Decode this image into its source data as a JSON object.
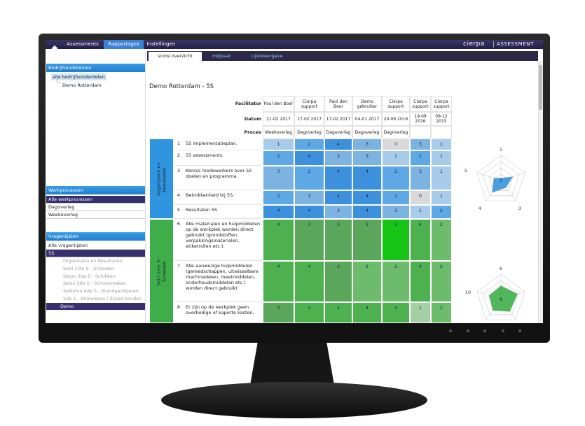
{
  "nav": {
    "items": [
      "Assessments",
      "Rapportages",
      "Instellingen"
    ],
    "active": 1,
    "logo": "cierpa",
    "product": "ASSESSMENT"
  },
  "tabs": {
    "items": [
      "score overzicht",
      "mijlpaal",
      "Lijstweergave"
    ],
    "active": 0
  },
  "sidebar": {
    "sections": [
      {
        "title": "Bedrijfsonderdelen",
        "items": [
          "alle bedrijfsonderdelen",
          "Demo Rotterdam"
        ]
      },
      {
        "title": "Werkprocessen",
        "items": [
          "Alle werkprocessen",
          "Dagoverleg",
          "Weekoverleg"
        ]
      },
      {
        "title": "Vragenlijsten",
        "items": [
          "Alle vragenlijsten",
          "5S"
        ],
        "subitems": [
          "Organisatie en Resultaten.",
          "Seiri 1ste S - Scheiden",
          "Seton 2de S - Schikken",
          "Seiso 3de S - Schoonmaken",
          "Seiketsu 4de S - Standaardiseren",
          "5de S - Stimuleren / Stand-houden",
          "Demo"
        ]
      }
    ]
  },
  "report": {
    "title": "Demo Rotterdam - 5S",
    "header_labels": [
      "Facilitator",
      "Datum",
      "Proces"
    ],
    "columns": [
      {
        "facilitator": "Paul den Boer",
        "date": "21-02 2017",
        "process": "Weekoverleg"
      },
      {
        "facilitator": "Cierpa support",
        "date": "17-02 2017",
        "process": "Dagoverleg"
      },
      {
        "facilitator": "Paul den Boer",
        "date": "17-02 2017",
        "process": "Dagoverleg"
      },
      {
        "facilitator": "Demo gebruiker",
        "date": "04-01 2017",
        "process": "Dagoverleg"
      },
      {
        "facilitator": "Cierpa support",
        "date": "20-09 2016",
        "process": "Dagoverleg"
      },
      {
        "facilitator": "Cierpa support",
        "date": "19-09 2016"
      },
      {
        "facilitator": "Cierpa support",
        "date": "09-12 2015"
      }
    ],
    "groups": [
      {
        "name": "Organisatie en Resultaten.",
        "color": "blue",
        "rows": [
          {
            "number": 1,
            "question": "5S implementatieplan.",
            "scores": [
              1,
              2,
              4,
              3,
              0,
              3,
              1
            ]
          },
          {
            "number": 2,
            "question": "5S assessments.",
            "scores": [
              2,
              4,
              3,
              3,
              1,
              2,
              1
            ]
          },
          {
            "number": 3,
            "question": "Kennis medewerkers over 5S doelen en programma.",
            "scores": [
              3,
              2,
              4,
              4,
              2,
              3,
              1
            ]
          },
          {
            "number": 4,
            "question": "Betrokkenheid bij 5S.",
            "scores": [
              2,
              3,
              4,
              4,
              2,
              0,
              1
            ]
          },
          {
            "number": 5,
            "question": "Resultaten 5S.",
            "scores": [
              4,
              4,
              3,
              4,
              3,
              1,
              2
            ]
          }
        ]
      },
      {
        "name": "Seiri 1ste S - Scheiden",
        "color": "green",
        "rows": [
          {
            "number": 6,
            "question": "Alle materialen en hulpmiddelen op de werkplek worden direct gebruikt (grondstoffen, verpakkingsmaterialen, etiketrollen etc.).",
            "scores": [
              4,
              3,
              3,
              3,
              5,
              4,
              2
            ]
          },
          {
            "number": 7,
            "question": "Alle aanwezige hulpmiddelen (gereedschappen, uitwisselbare machinedelen, meetmiddelen, onderhoudsmiddelen etc.) worden direct gebruikt",
            "scores": [
              4,
              4,
              3,
              2,
              2,
              4,
              2
            ]
          },
          {
            "number": 8,
            "question": "Er zijn op de werkplek geen overbodige of kapotte kasten,",
            "scores": [
              3,
              4,
              4,
              4,
              4,
              1,
              2
            ]
          }
        ]
      }
    ]
  },
  "radars": [
    {
      "labels": [
        1,
        5,
        4,
        3
      ],
      "center": 0,
      "color": "#3a95dc"
    },
    {
      "labels": [
        6,
        10
      ],
      "center": 8,
      "color": "#3fae4a"
    }
  ]
}
